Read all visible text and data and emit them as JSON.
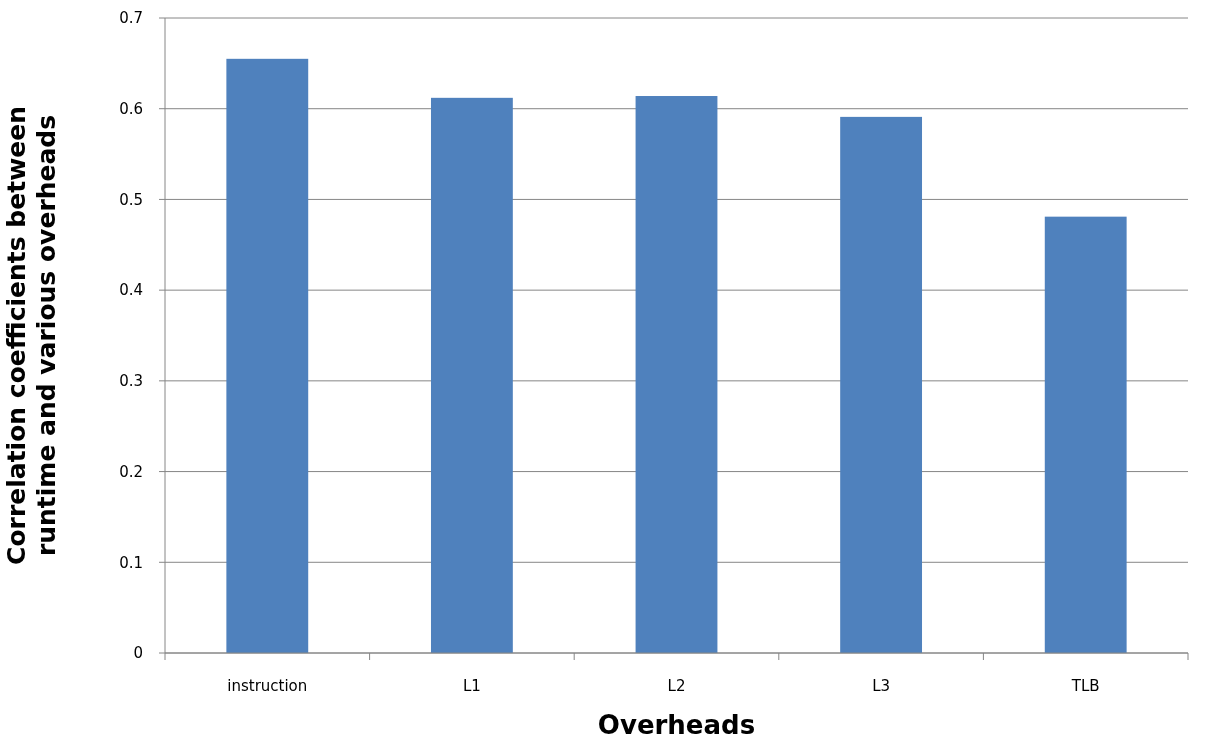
{
  "chart_data": {
    "type": "bar",
    "xlabel": "Overheads",
    "ylabel": "Correlation coefficients between\nruntime and various overheads",
    "categories": [
      "instruction",
      "L1",
      "L2",
      "L3",
      "TLB"
    ],
    "values": [
      0.655,
      0.612,
      0.614,
      0.591,
      0.481
    ],
    "color": "#4f81bd",
    "ylim": [
      0,
      0.7
    ],
    "yticks": [
      0,
      0.1,
      0.2,
      0.3,
      0.4,
      0.5,
      0.6,
      0.7
    ],
    "grid": "y"
  }
}
